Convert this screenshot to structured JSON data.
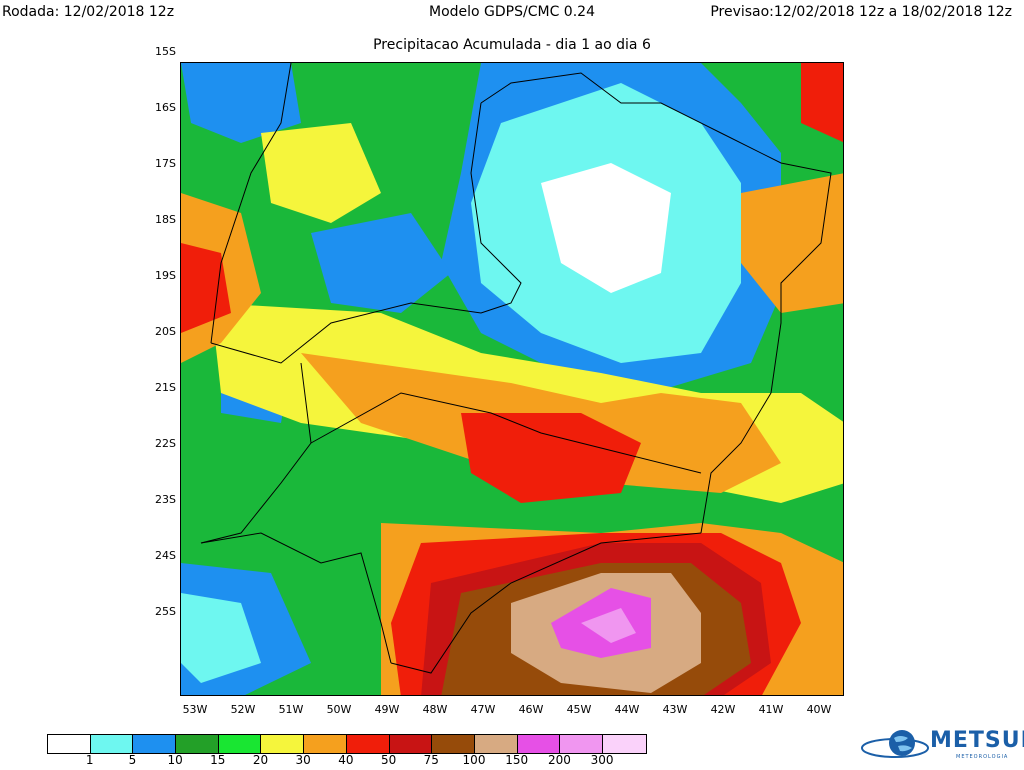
{
  "header": {
    "left": "Rodada: 12/02/2018 12z",
    "center": "Modelo GDPS/CMC 0.24",
    "right": "Previsao:12/02/2018 12z a 18/02/2018 12z",
    "subtitle": "Precipitacao Acumulada - dia 1 ao dia 6"
  },
  "map": {
    "lat_labels": [
      "15S",
      "16S",
      "17S",
      "18S",
      "19S",
      "20S",
      "21S",
      "22S",
      "23S",
      "24S",
      "25S"
    ],
    "lon_labels": [
      "53W",
      "52W",
      "51W",
      "50W",
      "49W",
      "48W",
      "47W",
      "46W",
      "45W",
      "44W",
      "43W",
      "42W",
      "41W",
      "40W"
    ]
  },
  "colorbar": {
    "colors": [
      "#ffffff",
      "#6ef7f0",
      "#1e90f0",
      "#23a028",
      "#19e632",
      "#f5f53c",
      "#f5a01e",
      "#f01e0a",
      "#c81414",
      "#964b0a",
      "#d7aa82",
      "#e650e6",
      "#f096f0",
      "#fad2fa"
    ],
    "labels": [
      "1",
      "5",
      "10",
      "15",
      "20",
      "30",
      "40",
      "50",
      "75",
      "100",
      "150",
      "200",
      "300"
    ]
  },
  "logo": {
    "text": "METSUL",
    "sub": "METEOROLOGIA"
  }
}
